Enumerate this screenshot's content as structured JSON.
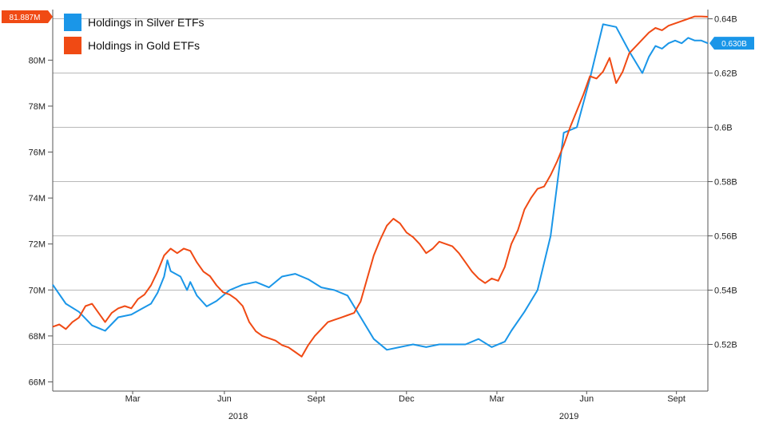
{
  "chart_data": {
    "type": "line",
    "x_tick_labels": [
      "Mar",
      "Jun",
      "Sept",
      "Dec",
      "Mar",
      "Jun",
      "Sept"
    ],
    "year_labels": [
      "2018",
      "2019"
    ],
    "left_axis": {
      "tick_labels": [
        "66M",
        "68M",
        "70M",
        "72M",
        "74M",
        "76M",
        "78M",
        "80M"
      ],
      "ylim": [
        65.6,
        82.2
      ]
    },
    "right_axis": {
      "tick_labels": [
        "0.52B",
        "0.54B",
        "0.56B",
        "0.58B",
        "0.6B",
        "0.62B",
        "0.64B"
      ],
      "ylim": [
        0.5028,
        0.6434
      ]
    },
    "grid": true,
    "legend": "top-left",
    "series": [
      {
        "name": "Holdings in Silver ETFs",
        "color": "#1a96e8",
        "axis": "right",
        "last_value_label": "0.630B",
        "x": [
          0,
          0.02,
          0.04,
          0.06,
          0.08,
          0.1,
          0.12,
          0.135,
          0.15,
          0.16,
          0.17,
          0.175,
          0.18,
          0.195,
          0.205,
          0.21,
          0.22,
          0.235,
          0.25,
          0.27,
          0.29,
          0.31,
          0.33,
          0.35,
          0.37,
          0.39,
          0.41,
          0.43,
          0.45,
          0.47,
          0.49,
          0.51,
          0.53,
          0.55,
          0.57,
          0.59,
          0.61,
          0.63,
          0.65,
          0.67,
          0.69,
          0.7,
          0.72,
          0.74,
          0.76,
          0.78,
          0.8,
          0.82,
          0.84,
          0.86,
          0.88,
          0.9,
          0.91,
          0.92,
          0.93,
          0.94,
          0.95,
          0.96,
          0.97,
          0.98,
          0.99,
          1
        ],
        "values": [
          0.542,
          0.535,
          0.532,
          0.527,
          0.525,
          0.53,
          0.531,
          0.533,
          0.535,
          0.539,
          0.545,
          0.551,
          0.547,
          0.545,
          0.54,
          0.543,
          0.538,
          0.534,
          0.536,
          0.54,
          0.542,
          0.543,
          0.541,
          0.545,
          0.546,
          0.544,
          0.541,
          0.54,
          0.538,
          0.53,
          0.522,
          0.518,
          0.519,
          0.52,
          0.519,
          0.52,
          0.52,
          0.52,
          0.522,
          0.519,
          0.521,
          0.525,
          0.532,
          0.54,
          0.56,
          0.598,
          0.6,
          0.618,
          0.638,
          0.637,
          0.628,
          0.62,
          0.626,
          0.63,
          0.629,
          0.631,
          0.632,
          0.631,
          0.633,
          0.632,
          0.632,
          0.631
        ]
      },
      {
        "name": "Holdings in Gold ETFs",
        "color": "#f04a14",
        "axis": "left",
        "last_value_label": "81.887M",
        "x": [
          0,
          0.01,
          0.02,
          0.03,
          0.04,
          0.05,
          0.06,
          0.07,
          0.08,
          0.09,
          0.1,
          0.11,
          0.12,
          0.13,
          0.14,
          0.15,
          0.16,
          0.17,
          0.18,
          0.19,
          0.2,
          0.21,
          0.22,
          0.23,
          0.24,
          0.25,
          0.26,
          0.27,
          0.28,
          0.29,
          0.3,
          0.31,
          0.32,
          0.33,
          0.34,
          0.35,
          0.36,
          0.37,
          0.38,
          0.39,
          0.4,
          0.41,
          0.42,
          0.43,
          0.44,
          0.45,
          0.46,
          0.47,
          0.48,
          0.49,
          0.5,
          0.51,
          0.52,
          0.53,
          0.54,
          0.55,
          0.56,
          0.57,
          0.58,
          0.59,
          0.6,
          0.61,
          0.62,
          0.63,
          0.64,
          0.65,
          0.66,
          0.67,
          0.68,
          0.69,
          0.7,
          0.71,
          0.72,
          0.73,
          0.74,
          0.75,
          0.76,
          0.77,
          0.78,
          0.79,
          0.8,
          0.81,
          0.82,
          0.83,
          0.84,
          0.85,
          0.86,
          0.87,
          0.88,
          0.89,
          0.9,
          0.91,
          0.92,
          0.93,
          0.94,
          0.95,
          0.96,
          0.97,
          0.98,
          0.99,
          1
        ],
        "values": [
          68.4,
          68.5,
          68.3,
          68.6,
          68.8,
          69.3,
          69.4,
          69.0,
          68.6,
          69.0,
          69.2,
          69.3,
          69.2,
          69.6,
          69.8,
          70.2,
          70.8,
          71.5,
          71.8,
          71.6,
          71.8,
          71.7,
          71.2,
          70.8,
          70.6,
          70.2,
          69.9,
          69.8,
          69.6,
          69.3,
          68.6,
          68.2,
          68.0,
          67.9,
          67.8,
          67.6,
          67.5,
          67.3,
          67.1,
          67.6,
          68.0,
          68.3,
          68.6,
          68.7,
          68.8,
          68.9,
          69.0,
          69.5,
          70.5,
          71.5,
          72.2,
          72.8,
          73.1,
          72.9,
          72.5,
          72.3,
          72.0,
          71.6,
          71.8,
          72.1,
          72.0,
          71.9,
          71.6,
          71.2,
          70.8,
          70.5,
          70.3,
          70.5,
          70.4,
          71.0,
          72.0,
          72.6,
          73.5,
          74.0,
          74.4,
          74.5,
          75.0,
          75.6,
          76.3,
          77.1,
          77.8,
          78.5,
          79.3,
          79.2,
          79.5,
          80.1,
          79.0,
          79.5,
          80.3,
          80.6,
          80.9,
          81.2,
          81.4,
          81.3,
          81.5,
          81.6,
          81.7,
          81.8,
          81.9,
          81.9,
          81.887
        ]
      }
    ]
  }
}
